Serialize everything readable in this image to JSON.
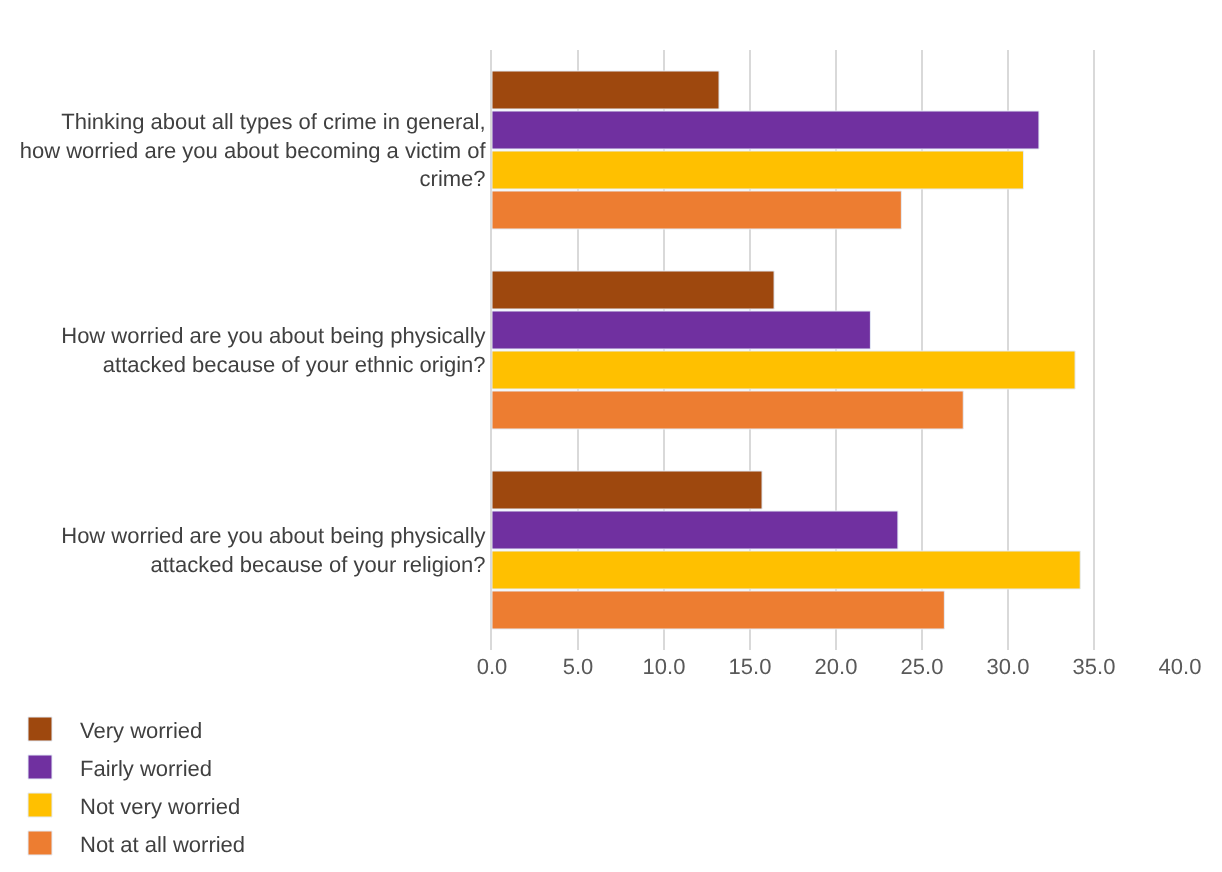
{
  "chart_data": {
    "type": "bar",
    "orientation": "horizontal",
    "categories": [
      "Thinking about all types of crime in general, how worried are you about becoming a victim of crime?",
      "How worried are you about being physically attacked because of your ethnic origin?",
      "How worried are you about being physically attacked because of your religion?"
    ],
    "series": [
      {
        "name": "Very worried",
        "color": "#9e480e",
        "values": [
          13.2,
          16.4,
          15.7
        ]
      },
      {
        "name": "Fairly worried",
        "color": "#7030a0",
        "values": [
          31.8,
          22.0,
          23.6
        ]
      },
      {
        "name": "Not very worried",
        "color": "#ffc000",
        "values": [
          30.9,
          33.9,
          34.2
        ]
      },
      {
        "name": "Not at all worried",
        "color": "#ed7d31",
        "values": [
          23.8,
          27.4,
          26.3
        ]
      }
    ],
    "xlim": [
      0,
      40
    ],
    "xticks": [
      {
        "value": 0,
        "label": "0.0"
      },
      {
        "value": 5,
        "label": "5.0"
      },
      {
        "value": 10,
        "label": "10.0"
      },
      {
        "value": 15,
        "label": "15.0"
      },
      {
        "value": 20,
        "label": "20.0"
      },
      {
        "value": 25,
        "label": "25.0"
      },
      {
        "value": 30,
        "label": "30.0"
      },
      {
        "value": 35,
        "label": "35.0"
      },
      {
        "value": 40,
        "label": "40.0"
      }
    ],
    "grid": "x",
    "legend": "bottom"
  }
}
